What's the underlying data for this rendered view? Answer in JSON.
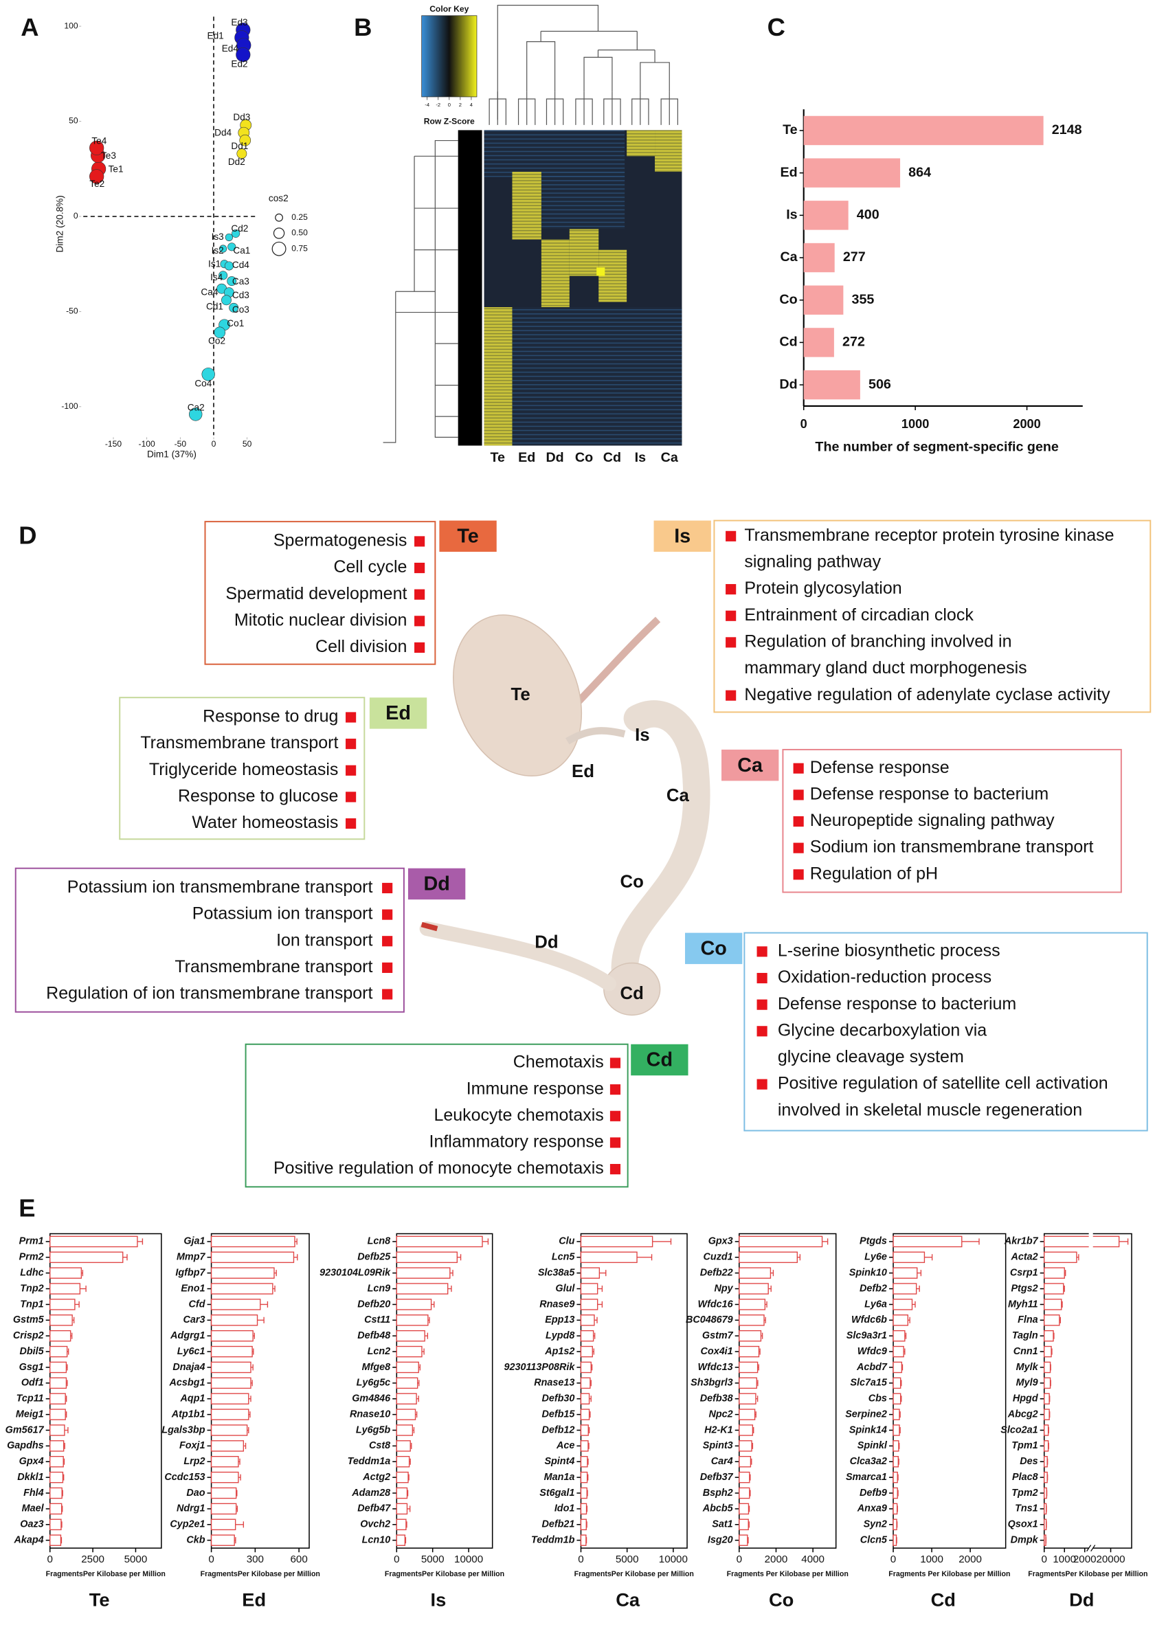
{
  "panel_labels": [
    "A",
    "B",
    "C",
    "D",
    "E"
  ],
  "chart_data": [
    {
      "type": "scatter",
      "xlabel": "Dim1 (37%)",
      "ylabel": "Dim2 (20.8%)",
      "xlim": [
        -195,
        65
      ],
      "ylim": [
        -115,
        105
      ],
      "xticks": [
        -150,
        -100,
        -50,
        0,
        50
      ],
      "yticks": [
        -100,
        -50,
        0,
        50,
        100
      ],
      "legend_title": "cos2",
      "sizes": [
        0.25,
        {
          "value": 0.5,
          "label": "0.50"
        },
        0.75
      ],
      "points": [
        {
          "label": "Te1",
          "x": -172,
          "y": 25,
          "cos2": 0.8,
          "color": "#e41a1c"
        },
        {
          "label": "Te2",
          "x": -175,
          "y": 21,
          "cos2": 0.8,
          "color": "#e41a1c"
        },
        {
          "label": "Te3",
          "x": -173,
          "y": 32,
          "cos2": 0.8,
          "color": "#e41a1c"
        },
        {
          "label": "Te4",
          "x": -175,
          "y": 36,
          "cos2": 0.8,
          "color": "#e41a1c"
        },
        {
          "label": "Ed3",
          "x": 44,
          "y": 98,
          "cos2": 0.8,
          "color": "#1414c8"
        },
        {
          "label": "Ed1",
          "x": 42,
          "y": 94,
          "cos2": 0.8,
          "color": "#1414c8"
        },
        {
          "label": "Ed4",
          "x": 45,
          "y": 90,
          "cos2": 0.8,
          "color": "#1414c8"
        },
        {
          "label": "Ed2",
          "x": 44,
          "y": 85,
          "cos2": 0.8,
          "color": "#1414c8"
        },
        {
          "label": "Dd3",
          "x": 48,
          "y": 48,
          "cos2": 0.55,
          "color": "#f2e21e"
        },
        {
          "label": "Dd4",
          "x": 45,
          "y": 44,
          "cos2": 0.55,
          "color": "#f2e21e"
        },
        {
          "label": "Dd1",
          "x": 47,
          "y": 40,
          "cos2": 0.55,
          "color": "#f2e21e"
        },
        {
          "label": "Dd2",
          "x": 42,
          "y": 33,
          "cos2": 0.45,
          "color": "#f2e21e"
        },
        {
          "label": "Cd2",
          "x": 33,
          "y": -9,
          "cos2": 0.3,
          "color": "#2ed6e0"
        },
        {
          "label": "Is3",
          "x": 23,
          "y": -11,
          "cos2": 0.25,
          "color": "#2ed6e0"
        },
        {
          "label": "Ca1",
          "x": 27,
          "y": -16,
          "cos2": 0.3,
          "color": "#2ed6e0"
        },
        {
          "label": "Is2",
          "x": 14,
          "y": -17,
          "cos2": 0.25,
          "color": "#2ed6e0"
        },
        {
          "label": "Is1",
          "x": 16,
          "y": -25,
          "cos2": 0.3,
          "color": "#2ed6e0"
        },
        {
          "label": "Cd4",
          "x": 23,
          "y": -26,
          "cos2": 0.35,
          "color": "#2ed6e0"
        },
        {
          "label": "Is4",
          "x": 14,
          "y": -31,
          "cos2": 0.35,
          "color": "#2ed6e0"
        },
        {
          "label": "Ca3",
          "x": 27,
          "y": -34,
          "cos2": 0.4,
          "color": "#2ed6e0"
        },
        {
          "label": "Ca4",
          "x": 12,
          "y": -38,
          "cos2": 0.45,
          "color": "#2ed6e0"
        },
        {
          "label": "Cd3",
          "x": 23,
          "y": -40,
          "cos2": 0.45,
          "color": "#2ed6e0"
        },
        {
          "label": "Cd1",
          "x": 19,
          "y": -44,
          "cos2": 0.45,
          "color": "#2ed6e0"
        },
        {
          "label": "Co3",
          "x": 30,
          "y": -48,
          "cos2": 0.4,
          "color": "#2ed6e0"
        },
        {
          "label": "Co1",
          "x": 16,
          "y": -57,
          "cos2": 0.55,
          "color": "#2ed6e0"
        },
        {
          "label": "Co2",
          "x": 9,
          "y": -61,
          "cos2": 0.55,
          "color": "#2ed6e0"
        },
        {
          "label": "Co4",
          "x": -8,
          "y": -83,
          "cos2": 0.7,
          "color": "#2ed6e0"
        },
        {
          "label": "Ca2",
          "x": -27,
          "y": -104,
          "cos2": 0.7,
          "color": "#2ed6e0"
        }
      ]
    },
    {
      "type": "heatmap",
      "key_title": "Color Key",
      "key_label": "Row Z-Score",
      "key_lim": [
        -5,
        5
      ],
      "key_ticks": [
        -4,
        -2,
        0,
        2,
        4
      ],
      "key_colors": [
        "#3a8fd8",
        "#111111",
        "#f2f21e"
      ],
      "columns": [
        "Te",
        "Ed",
        "Dd",
        "Co",
        "Cd",
        "Is",
        "Ca"
      ]
    },
    {
      "type": "bar",
      "xlabel": "The number of segment-specific gene",
      "categories": [
        "Te",
        "Ed",
        "Is",
        "Ca",
        "Co",
        "Cd",
        "Dd"
      ],
      "values": [
        2148,
        864,
        400,
        277,
        355,
        272,
        506
      ],
      "xlim": [
        0,
        2500
      ],
      "xticks": [
        0,
        1000,
        2000
      ],
      "color": "#f7a3a3"
    },
    {
      "type": "bar",
      "title": "Te",
      "xlabel": "FragmentsPer Kilobase per Million",
      "color": "#e04545",
      "fill": "#ffffff",
      "xlim": [
        0,
        6500
      ],
      "xticks": [
        0,
        2500,
        5000
      ],
      "categories": [
        "Prm1",
        "Prm2",
        "Ldhc",
        "Tnp2",
        "Tnp1",
        "Gstm5",
        "Crisp2",
        "Dbil5",
        "Gsg1",
        "Odf1",
        "Tcp11",
        "Meig1",
        "Gm5617",
        "Gapdhs",
        "Gpx4",
        "Dkkl1",
        "Fhl4",
        "Mael",
        "Oaz3",
        "Akap4"
      ],
      "values": [
        5100,
        4250,
        1830,
        1750,
        1450,
        1300,
        1200,
        1000,
        950,
        950,
        900,
        900,
        850,
        800,
        780,
        750,
        700,
        680,
        650,
        630
      ],
      "errors": [
        300,
        250,
        80,
        350,
        250,
        100,
        80,
        80,
        60,
        60,
        60,
        60,
        200,
        60,
        50,
        50,
        40,
        40,
        40,
        40
      ]
    },
    {
      "type": "bar",
      "title": "Ed",
      "xlabel": "FragmentsPer Kilobase per Million",
      "color": "#e04545",
      "fill": "#ffffff",
      "xlim": [
        0,
        670
      ],
      "xticks": [
        0,
        300,
        600
      ],
      "categories": [
        "Gja1",
        "Mmp7",
        "Igfbp7",
        "Eno1",
        "Cfd",
        "Car3",
        "Adgrg1",
        "Ly6c1",
        "Dnaja4",
        "Acsbg1",
        "Aqp1",
        "Atp1b1",
        "Lgals3bp",
        "Foxj1",
        "Lrp2",
        "Ccdc153",
        "Dao",
        "Ndrg1",
        "Cyp2e1",
        "Ckb"
      ],
      "values": [
        571,
        564,
        430,
        420,
        335,
        315,
        285,
        280,
        270,
        270,
        255,
        255,
        245,
        220,
        185,
        185,
        170,
        170,
        165,
        158
      ],
      "errors": [
        15,
        25,
        15,
        15,
        50,
        45,
        10,
        8,
        15,
        10,
        15,
        10,
        10,
        15,
        10,
        15,
        5,
        8,
        55,
        8
      ]
    },
    {
      "type": "bar",
      "title": "Is",
      "xlabel": "FragmentsPer Kilobase per Million",
      "color": "#e04545",
      "fill": "#ffffff",
      "xlim": [
        0,
        13300
      ],
      "xticks": [
        0,
        5000,
        10000
      ],
      "categories": [
        "Lcn8",
        "Defb25",
        "9230104L09Rik",
        "Lcn9",
        "Defb20",
        "Cst11",
        "Defb48",
        "Lcn2",
        "Mfge8",
        "Ly6g5c",
        "Gm4846",
        "Rnase10",
        "Ly6g5b",
        "Cst8",
        "Teddm1a",
        "Actg2",
        "Adam28",
        "Defb47",
        "Ovch2",
        "Lcn10"
      ],
      "values": [
        11900,
        8400,
        7400,
        7100,
        4800,
        4350,
        3900,
        3500,
        3050,
        2900,
        2750,
        2600,
        2200,
        1900,
        1750,
        1600,
        1450,
        1450,
        1300,
        1150
      ],
      "errors": [
        800,
        500,
        400,
        500,
        400,
        200,
        400,
        300,
        200,
        200,
        300,
        200,
        200,
        150,
        150,
        100,
        100,
        400,
        100,
        100
      ]
    },
    {
      "type": "bar",
      "title": "Ca",
      "xlabel": "FragmentsPer Kilobase per Million",
      "color": "#e04545",
      "fill": "#ffffff",
      "xlim": [
        0,
        11500
      ],
      "xticks": [
        0,
        5000,
        10000
      ],
      "categories": [
        "Clu",
        "Lcn5",
        "Slc38a5",
        "Glul",
        "Rnase9",
        "Epp13",
        "Lypd8",
        "Ap1s2",
        "9230113P08Rik",
        "Rnase13",
        "Defb30",
        "Defb15",
        "Defb12",
        "Ace",
        "Spint4",
        "Man1a",
        "St6gal1",
        "Ido1",
        "Defb21",
        "Teddm1b"
      ],
      "values": [
        7750,
        6070,
        2000,
        1800,
        1800,
        1450,
        1350,
        1250,
        1100,
        1000,
        900,
        900,
        800,
        780,
        700,
        680,
        650,
        600,
        580,
        550
      ],
      "errors": [
        2000,
        1600,
        700,
        500,
        500,
        300,
        150,
        150,
        100,
        100,
        200,
        100,
        100,
        80,
        80,
        80,
        60,
        60,
        60,
        50
      ]
    },
    {
      "type": "bar",
      "title": "Co",
      "xlabel": "Fragments Per Kilobase per Million",
      "color": "#e04545",
      "fill": "#ffffff",
      "xlim": [
        0,
        5250
      ],
      "xticks": [
        0,
        2000,
        4000
      ],
      "categories": [
        "Gpx3",
        "Cuzd1",
        "Defb22",
        "Npy",
        "Wfdc16",
        "BC048679",
        "Gstm7",
        "Cox4i1",
        "Wfdc13",
        "Sh3bgrl3",
        "Defb38",
        "Npc2",
        "H2-K1",
        "Spint3",
        "Car4",
        "Defb37",
        "Bsph2",
        "Abcb5",
        "Sat1",
        "Isg20"
      ],
      "values": [
        4500,
        3150,
        1700,
        1580,
        1400,
        1350,
        1180,
        1070,
        1000,
        950,
        900,
        850,
        730,
        680,
        620,
        560,
        560,
        510,
        500,
        450
      ],
      "errors": [
        300,
        150,
        150,
        150,
        100,
        80,
        80,
        60,
        60,
        60,
        100,
        60,
        50,
        50,
        50,
        40,
        40,
        40,
        40,
        40
      ]
    },
    {
      "type": "bar",
      "title": "Cd",
      "xlabel": "Fragments Per Kilobase per Million",
      "color": "#e04545",
      "fill": "#ffffff",
      "xlim": [
        0,
        2920
      ],
      "xticks": [
        0,
        1000,
        2000
      ],
      "categories": [
        "Ptgds",
        "Ly6e",
        "Spink10",
        "Defb2",
        "Ly6a",
        "Wfdc6b",
        "Slc9a3r1",
        "Wfdc9",
        "Acbd7",
        "Slc7a15",
        "Cbs",
        "Serpine2",
        "Spink14",
        "Spinkl",
        "Clca3a2",
        "Smarca1",
        "Defb9",
        "Anxa9",
        "Syn2",
        "Clcn5"
      ],
      "values": [
        1780,
        810,
        620,
        600,
        490,
        380,
        300,
        270,
        220,
        190,
        190,
        160,
        160,
        140,
        130,
        110,
        110,
        100,
        90,
        80
      ],
      "errors": [
        450,
        200,
        100,
        80,
        80,
        50,
        30,
        30,
        20,
        20,
        20,
        20,
        20,
        15,
        15,
        15,
        15,
        10,
        10,
        10
      ]
    },
    {
      "type": "bar",
      "title": "Dd",
      "xlabel": "FragmentsPer Kilobase per Million",
      "color": "#e04545",
      "fill": "#ffffff",
      "xlim": [
        0,
        25900
      ],
      "xbreak": [
        2200,
        15000
      ],
      "xticks": [
        0,
        1000,
        2000,
        20000
      ],
      "categories": [
        "Akr1b7",
        "Acta2",
        "Csrp1",
        "Ptgs2",
        "Myh11",
        "Flna",
        "Tagln",
        "Cnn1",
        "Mylk",
        "Myl9",
        "Hpgd",
        "Abcg2",
        "Slco2a1",
        "Tpm1",
        "Des",
        "Plac8",
        "Tpm2",
        "Tns1",
        "Qsox1",
        "Dmpk"
      ],
      "values": [
        22350,
        1600,
        1000,
        950,
        850,
        750,
        450,
        350,
        300,
        300,
        250,
        250,
        200,
        200,
        150,
        150,
        120,
        100,
        100,
        80
      ],
      "errors": [
        2500,
        100,
        50,
        50,
        40,
        50,
        30,
        30,
        20,
        20,
        20,
        20,
        20,
        20,
        15,
        15,
        10,
        10,
        10,
        10
      ]
    }
  ],
  "diagram": {
    "image_labels": [
      "Te",
      "Ed",
      "Is",
      "Ca",
      "Co",
      "Dd",
      "Cd"
    ],
    "groups": [
      {
        "tag": "Te",
        "items": [
          [
            "Spermatogenesis"
          ],
          [
            "Cell cycle"
          ],
          [
            "Spermatid development"
          ],
          [
            "Mitotic nuclear division"
          ],
          [
            "Cell division"
          ]
        ]
      },
      {
        "tag": "Is",
        "items": [
          [
            "Transmembrane receptor protein tyrosine kinase",
            "signaling pathway"
          ],
          [
            "Protein glycosylation"
          ],
          [
            "Entrainment of circadian clock"
          ],
          [
            "Regulation of branching involved in",
            "mammary gland duct morphogenesis"
          ],
          [
            "Negative regulation of adenylate cyclase activity"
          ]
        ]
      },
      {
        "tag": "Ed",
        "items": [
          [
            "Response to drug"
          ],
          [
            "Transmembrane transport"
          ],
          [
            "Triglyceride homeostasis"
          ],
          [
            "Response to glucose"
          ],
          [
            "Water homeostasis"
          ]
        ]
      },
      {
        "tag": "Ca",
        "items": [
          [
            "Defense response"
          ],
          [
            "Defense response to bacterium"
          ],
          [
            "Neuropeptide signaling pathway"
          ],
          [
            "Sodium ion transmembrane transport"
          ],
          [
            "Regulation of pH"
          ]
        ]
      },
      {
        "tag": "Dd",
        "items": [
          [
            "Potassium ion transmembrane transport"
          ],
          [
            "Potassium ion transport"
          ],
          [
            "Ion transport"
          ],
          [
            "Transmembrane transport"
          ],
          [
            "Regulation of ion transmembrane transport"
          ]
        ]
      },
      {
        "tag": "Co",
        "items": [
          [
            "L-serine biosynthetic process"
          ],
          [
            "Oxidation-reduction process"
          ],
          [
            "Defense response to bacterium"
          ],
          [
            "Glycine decarboxylation via",
            "glycine cleavage system"
          ],
          [
            "Positive regulation of satellite cell activation",
            "involved in skeletal muscle regeneration"
          ]
        ]
      },
      {
        "tag": "Cd",
        "items": [
          [
            "Chemotaxis"
          ],
          [
            "Immune response"
          ],
          [
            "Leukocyte chemotaxis"
          ],
          [
            "Inflammatory response"
          ],
          [
            "Positive regulation of monocyte chemotaxis"
          ]
        ]
      }
    ]
  }
}
